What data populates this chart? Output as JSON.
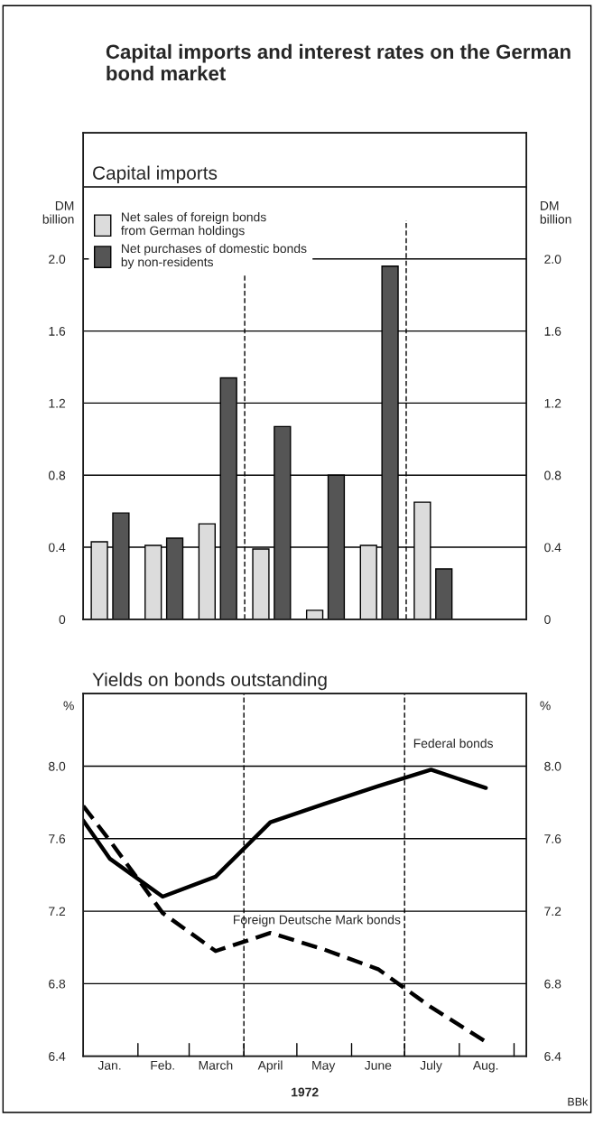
{
  "chart_data": [
    {
      "type": "bar",
      "title": "Capital imports and interest rates on the German bond market",
      "subtitle": "Capital imports",
      "ylabel": "DM\nbillion",
      "y2label": "DM\nbillion",
      "categories": [
        null,
        null,
        null,
        null,
        null,
        null,
        null,
        null
      ],
      "series": [
        {
          "name": "Net sales of foreign bonds\nfrom German holdings",
          "color": "#dcdcdc",
          "values": [
            0.43,
            0.41,
            0.53,
            0.39,
            0.05,
            0.41,
            0.65,
            null
          ]
        },
        {
          "name": "Net purchases of domestic bonds\nby non-residents",
          "color": "#555555",
          "values": [
            0.59,
            0.45,
            1.34,
            1.07,
            0.8,
            1.96,
            0.28,
            null
          ]
        }
      ],
      "ylim": [
        0,
        2.7
      ],
      "yticks": [
        0,
        0.4,
        0.8,
        1.2,
        1.6,
        {
          "value": 2.0,
          "label": "2.0"
        },
        {
          "value": 2.4,
          "label": null
        }
      ],
      "y2lim": [
        0,
        2.7
      ],
      "y2ticks": [
        0,
        0.4,
        0.8,
        1.2,
        1.6,
        {
          "value": 2.0,
          "label": "2.0"
        },
        {
          "value": 2.4,
          "label": null
        }
      ],
      "grid": "y",
      "legend": "top left",
      "tick_labels": "y"
    },
    {
      "type": "line",
      "subtitle": "Yields on bonds outstanding",
      "ylabel": "%",
      "y2label": "%",
      "xlabel": "1972",
      "series": [
        {
          "name": "Federal bonds",
          "color": "#000000",
          "line_style": "solid",
          "x": [
            "1972-01-01",
            "1972-01-16",
            "1972-02-15",
            "1972-03-16",
            "1972-04-16",
            "1972-05-16",
            "1972-06-16",
            "1972-07-16",
            "1972-08-16"
          ],
          "values": [
            7.7,
            7.49,
            7.28,
            7.39,
            7.69,
            7.79,
            7.89,
            7.98,
            7.88
          ]
        },
        {
          "name": "Foreign Deutsche Mark bonds",
          "color": "#000000",
          "line_style": "dashed",
          "x": [
            "1972-01-01",
            "1972-01-16",
            "1972-02-15",
            "1972-03-16",
            "1972-04-16",
            "1972-05-16",
            "1972-06-16",
            "1972-07-16",
            "1972-08-16"
          ],
          "values": [
            7.78,
            7.59,
            7.19,
            6.98,
            7.08,
            6.99,
            6.88,
            6.67,
            6.48
          ]
        }
      ],
      "xlim": [
        "1972-01-01",
        "1972-09-08"
      ],
      "xticks": [
        {
          "value": "1972-01-16",
          "label": "Jan."
        },
        {
          "value": "1972-02-15",
          "label": "Feb."
        },
        {
          "value": "1972-03-16",
          "label": "March"
        },
        {
          "value": "1972-04-16",
          "label": "April"
        },
        {
          "value": "1972-05-16",
          "label": "May"
        },
        {
          "value": "1972-06-16",
          "label": "June"
        },
        {
          "value": "1972-07-16",
          "label": "July"
        },
        {
          "value": "1972-08-16",
          "label": "Aug."
        },
        {
          "value": "1972-02-01",
          "label": null
        },
        {
          "value": "1972-03-01",
          "label": null
        },
        {
          "value": "1972-04-01",
          "label": null
        },
        {
          "value": "1972-05-01",
          "label": null
        },
        {
          "value": "1972-06-01",
          "label": null
        },
        {
          "value": "1972-07-01",
          "label": null
        },
        {
          "value": "1972-08-01",
          "label": null
        },
        {
          "value": "1972-09-01",
          "label": null
        }
      ],
      "ylim": [
        6.4,
        8.4
      ],
      "yticks": [
        6.4,
        6.8,
        7.2,
        7.6,
        {
          "value": 8.0,
          "label": "8.0"
        },
        {
          "value": 8.4,
          "label": null
        }
      ],
      "y2lim": [
        6.4,
        8.4
      ],
      "y2ticks": [
        6.4,
        6.8,
        7.2,
        7.6,
        {
          "value": 8.0,
          "label": "8.0"
        },
        {
          "value": 8.4,
          "label": null
        }
      ],
      "grid": "y",
      "legend": false,
      "ref_lines": [
        {
          "axis": "x",
          "value": "1972-04-01",
          "line_style": "dashed"
        },
        {
          "axis": "x",
          "value": "1972-07-01",
          "line_style": "dashed"
        }
      ],
      "annotations": [
        "BBk"
      ]
    }
  ]
}
